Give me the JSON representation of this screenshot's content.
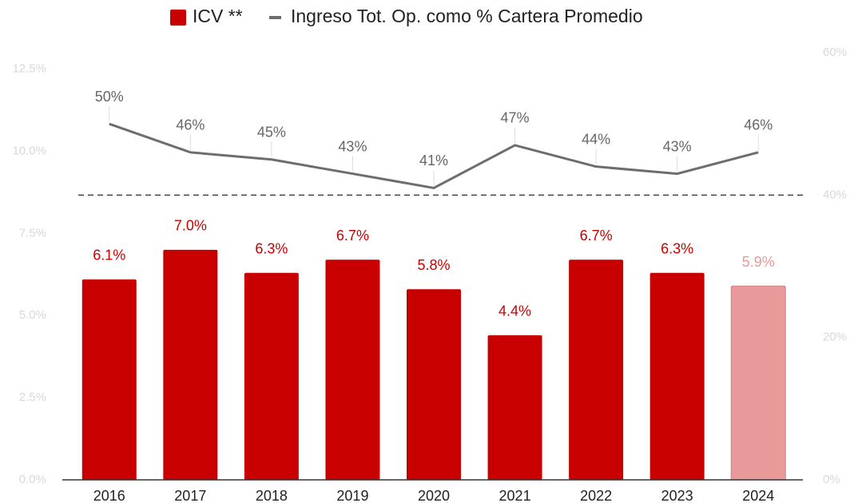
{
  "chart_data": {
    "type": "bar",
    "categories": [
      "2016",
      "2017",
      "2018",
      "2019",
      "2020",
      "2021",
      "2022",
      "2023",
      "2024"
    ],
    "series": [
      {
        "name": "ICV **",
        "type": "bar",
        "axis": "y",
        "color": "#c80000",
        "colors": [
          "#c80000",
          "#c80000",
          "#c80000",
          "#c80000",
          "#c80000",
          "#c80000",
          "#c80000",
          "#c80000",
          "#e89a9a"
        ],
        "values": [
          6.1,
          7.0,
          6.3,
          6.7,
          5.8,
          4.4,
          6.7,
          6.3,
          5.9
        ],
        "value_labels": [
          "6.1%",
          "7.0%",
          "6.3%",
          "6.7%",
          "5.8%",
          "4.4%",
          "6.7%",
          "6.3%",
          "5.9%"
        ]
      },
      {
        "name": "Ingreso Tot. Op. como % Cartera Promedio",
        "type": "line",
        "axis": "y2",
        "color": "#6d6d6d",
        "values": [
          50,
          46,
          45,
          43,
          41,
          47,
          44,
          43,
          46
        ],
        "value_labels": [
          "50%",
          "46%",
          "45%",
          "43%",
          "41%",
          "47%",
          "44%",
          "43%",
          "46%"
        ]
      }
    ],
    "ylim": [
      0,
      13
    ],
    "yticks": [
      {
        "value": 0,
        "label": "0.0%"
      },
      {
        "value": 2.5,
        "label": "2.5%"
      },
      {
        "value": 5,
        "label": "5.0%"
      },
      {
        "value": 7.5,
        "label": "7.5%"
      },
      {
        "value": 10,
        "label": "10.0%"
      },
      {
        "value": 12.5,
        "label": "12.5%"
      }
    ],
    "y2lim": [
      0,
      60
    ],
    "y2ticks": [
      {
        "value": 0,
        "label": "0%"
      },
      {
        "value": 20,
        "label": "20%"
      },
      {
        "value": 40,
        "label": "40%"
      },
      {
        "value": 60,
        "label": "60%"
      }
    ],
    "reference_line": {
      "axis": "y2",
      "value": 40
    },
    "legend": "top"
  }
}
